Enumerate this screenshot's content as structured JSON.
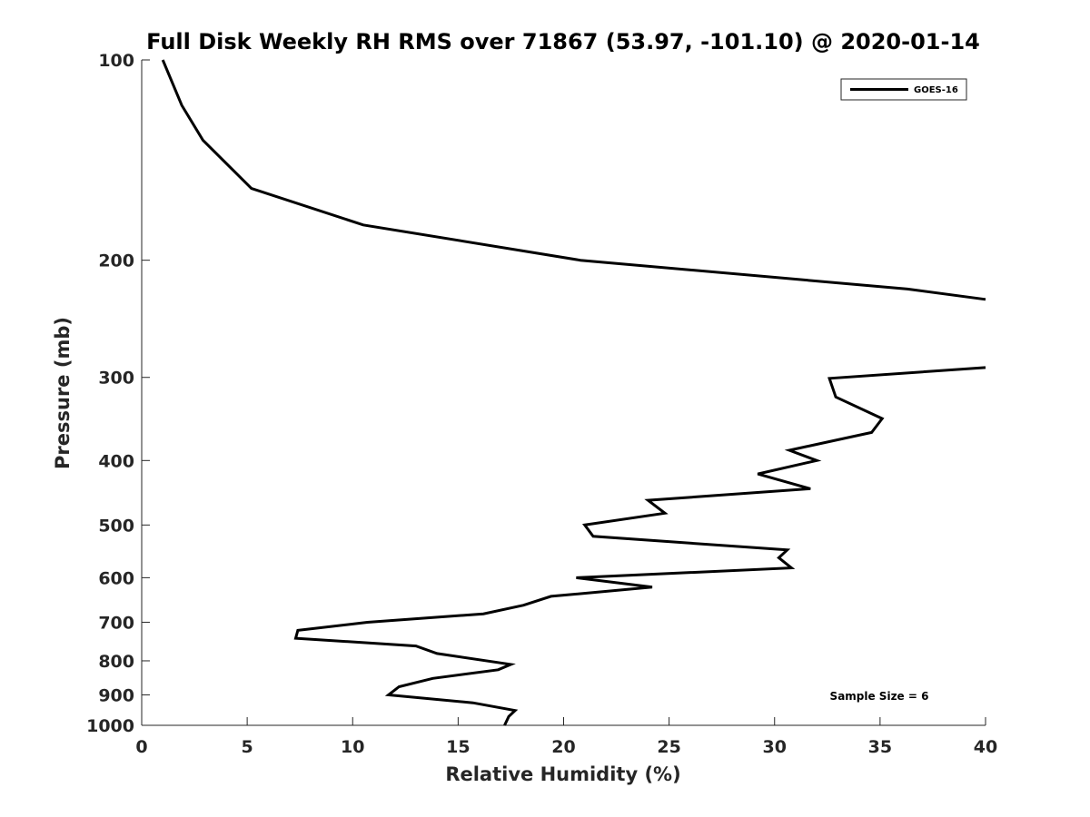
{
  "chart_data": {
    "type": "line",
    "title": "Full Disk Weekly RH RMS over 71867 (53.97, -101.10) @ 2020-01-14",
    "xlabel": "Relative Humidity (%)",
    "ylabel": "Pressure (mb)",
    "xlim": [
      0,
      40
    ],
    "ylim": [
      100,
      1000
    ],
    "y_scale": "log",
    "y_reversed": true,
    "x_ticks": [
      0,
      5,
      10,
      15,
      20,
      25,
      30,
      35,
      40
    ],
    "x_tick_labels": [
      "0",
      "5",
      "10",
      "15",
      "20",
      "25",
      "30",
      "35",
      "40"
    ],
    "y_ticks": [
      100,
      200,
      300,
      400,
      500,
      600,
      700,
      800,
      900,
      1000
    ],
    "y_tick_labels": [
      "100",
      "200",
      "300",
      "400",
      "500",
      "600",
      "700",
      "800",
      "900",
      "1000"
    ],
    "grid": false,
    "legend_position": "top-right",
    "annotation": "Sample Size = 6",
    "series": [
      {
        "name": "GOES-16",
        "color": "#000000",
        "segments": [
          [
            {
              "x": 1.0,
              "p": 100
            },
            {
              "x": 1.9,
              "p": 117
            },
            {
              "x": 2.9,
              "p": 132
            },
            {
              "x": 5.2,
              "p": 156
            },
            {
              "x": 10.5,
              "p": 177
            },
            {
              "x": 20.8,
              "p": 200
            },
            {
              "x": 36.3,
              "p": 221
            },
            {
              "x": 40.0,
              "p": 229
            }
          ],
          [
            {
              "x": 40.0,
              "p": 290
            },
            {
              "x": 32.6,
              "p": 301
            },
            {
              "x": 32.9,
              "p": 321
            },
            {
              "x": 35.1,
              "p": 346
            },
            {
              "x": 34.6,
              "p": 363
            },
            {
              "x": 30.7,
              "p": 386
            },
            {
              "x": 32.0,
              "p": 400
            },
            {
              "x": 29.2,
              "p": 419
            },
            {
              "x": 31.7,
              "p": 441
            },
            {
              "x": 24.0,
              "p": 459
            },
            {
              "x": 24.8,
              "p": 480
            },
            {
              "x": 21.0,
              "p": 500
            },
            {
              "x": 21.4,
              "p": 520
            },
            {
              "x": 30.6,
              "p": 545
            },
            {
              "x": 30.2,
              "p": 560
            },
            {
              "x": 30.8,
              "p": 580
            },
            {
              "x": 20.6,
              "p": 600
            },
            {
              "x": 24.2,
              "p": 620
            },
            {
              "x": 19.4,
              "p": 640
            },
            {
              "x": 18.1,
              "p": 660
            },
            {
              "x": 16.2,
              "p": 680
            },
            {
              "x": 10.7,
              "p": 700
            },
            {
              "x": 7.4,
              "p": 720
            },
            {
              "x": 7.3,
              "p": 740
            },
            {
              "x": 13.0,
              "p": 760
            },
            {
              "x": 14.0,
              "p": 780
            },
            {
              "x": 17.5,
              "p": 810
            },
            {
              "x": 16.9,
              "p": 825
            },
            {
              "x": 13.8,
              "p": 850
            },
            {
              "x": 12.2,
              "p": 875
            },
            {
              "x": 11.7,
              "p": 900
            },
            {
              "x": 15.7,
              "p": 925
            },
            {
              "x": 17.7,
              "p": 950
            },
            {
              "x": 17.4,
              "p": 970
            },
            {
              "x": 17.2,
              "p": 1000
            }
          ]
        ]
      }
    ]
  }
}
